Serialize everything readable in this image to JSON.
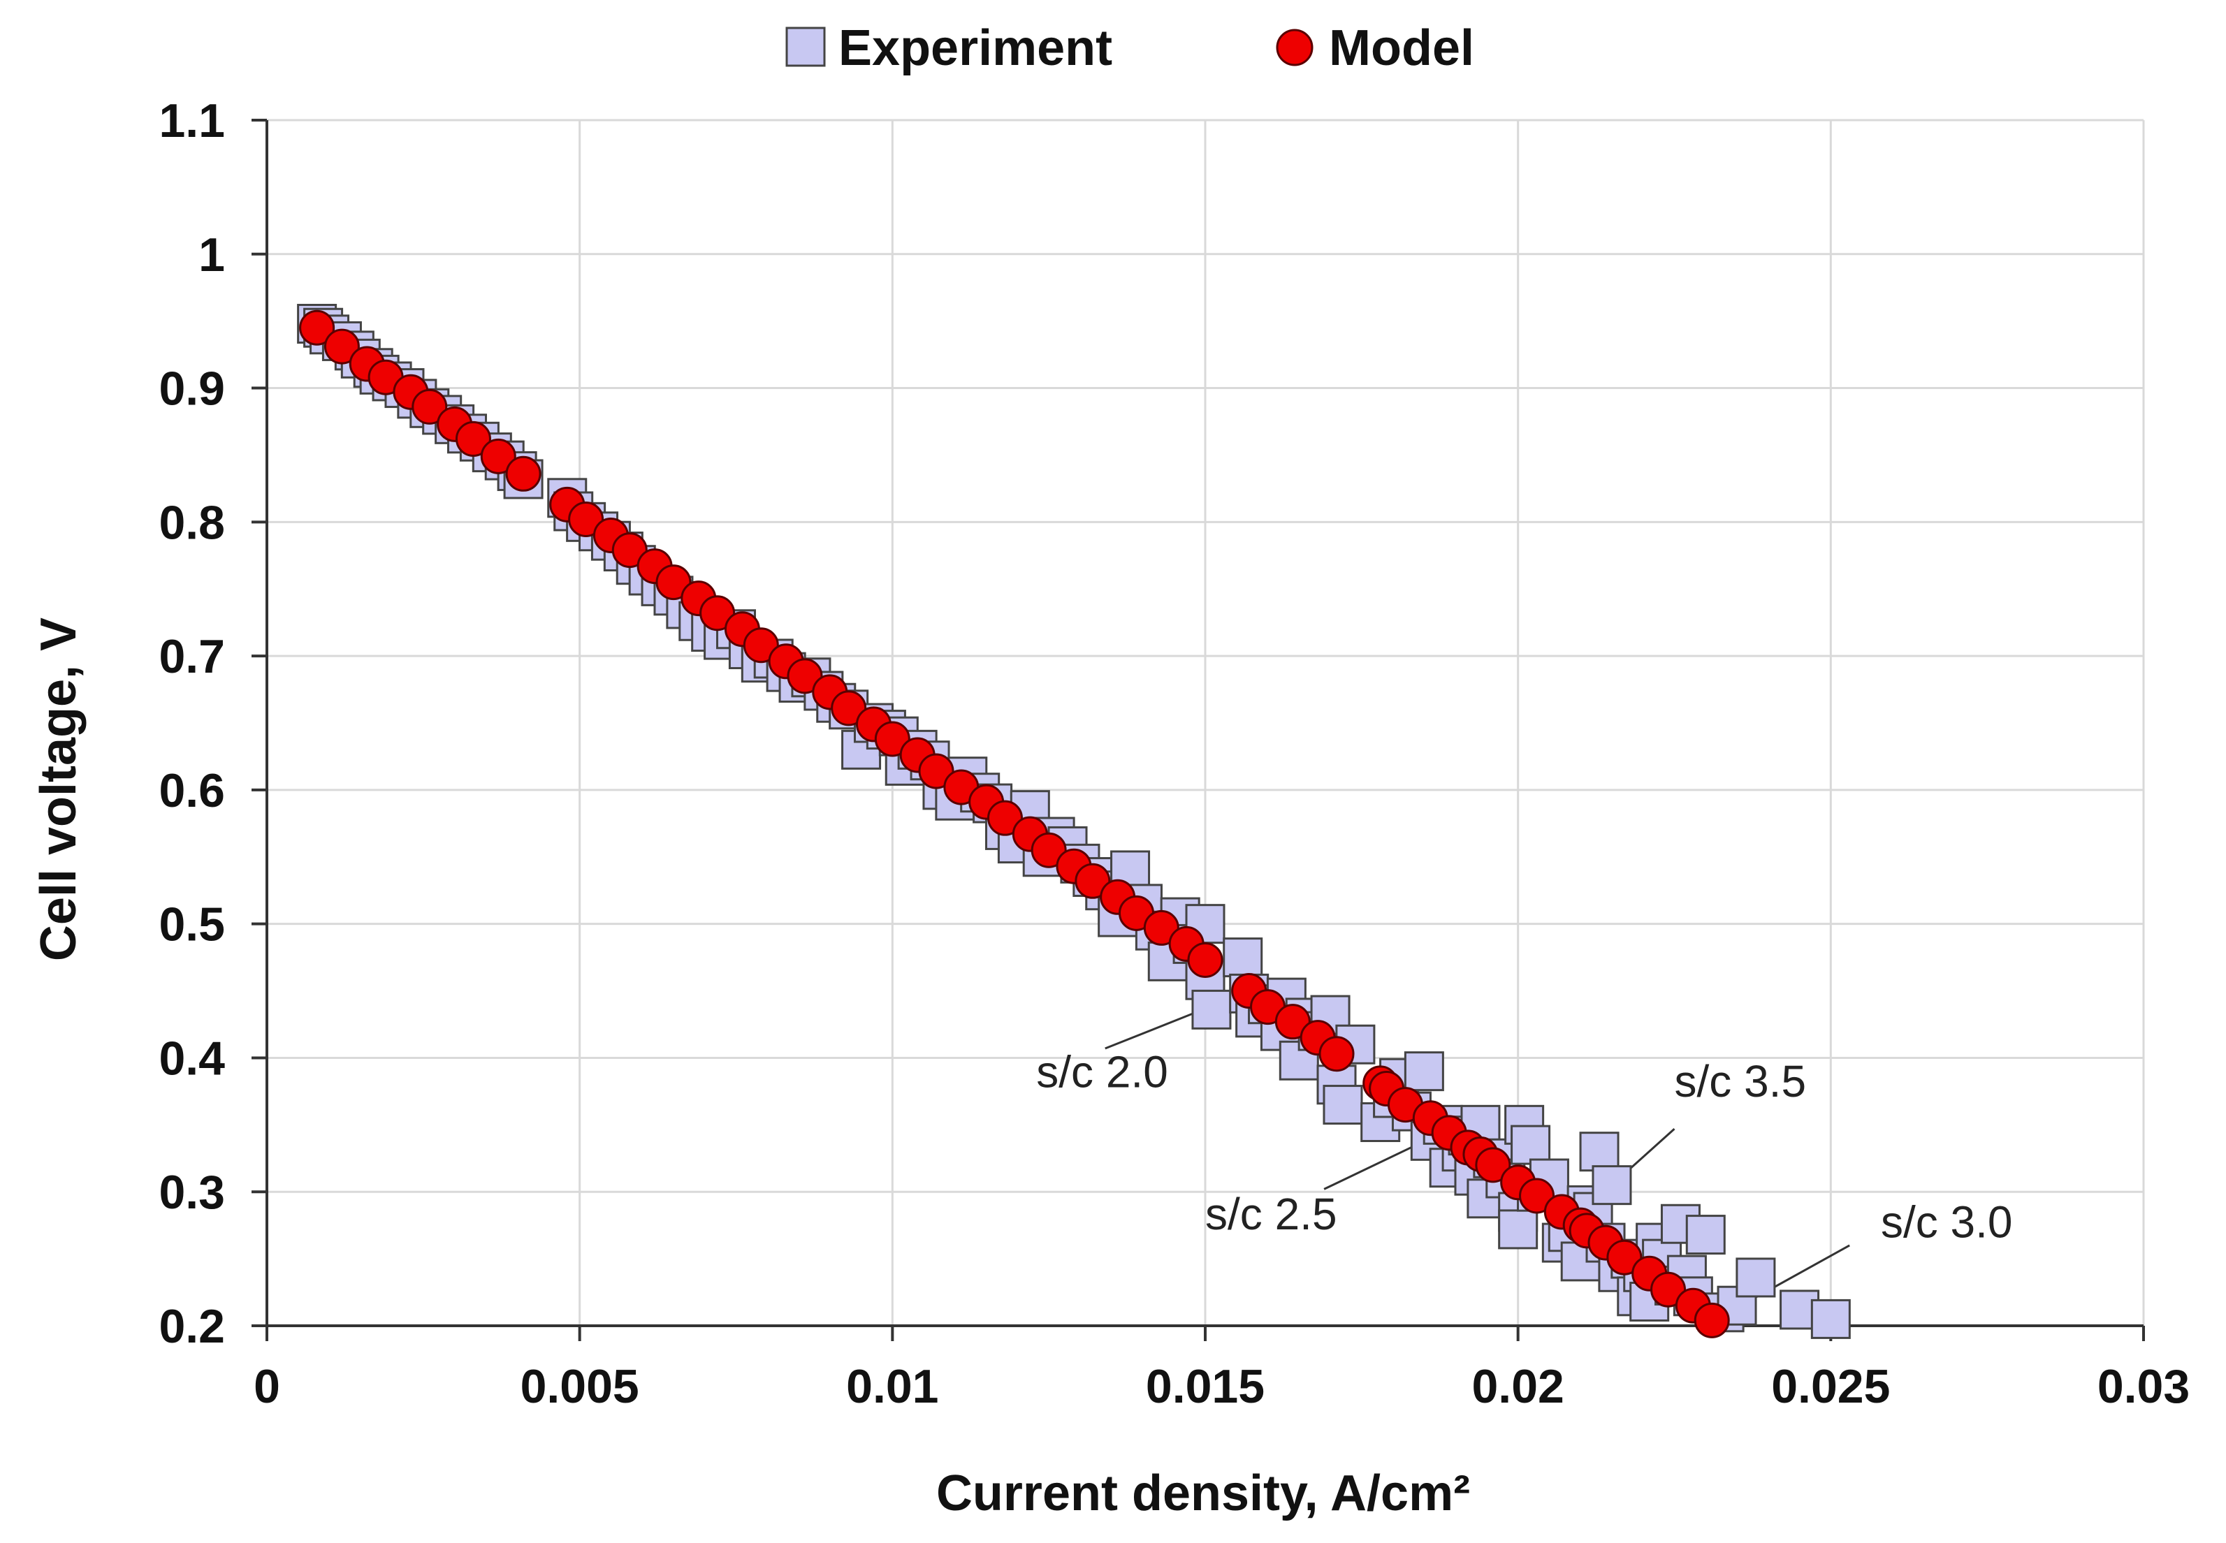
{
  "chart_data": {
    "type": "scatter",
    "title": "",
    "xlabel": "Current density, A/cm²",
    "ylabel": "Cell voltage, V",
    "xlim": [
      0,
      0.03
    ],
    "ylim": [
      0.2,
      1.1
    ],
    "xticks": [
      0,
      0.005,
      0.01,
      0.015,
      0.02,
      0.025,
      0.03
    ],
    "xtick_labels": [
      "0",
      "0.005",
      "0.01",
      "0.015",
      "0.02",
      "0.025",
      "0.03"
    ],
    "yticks": [
      0.2,
      0.3,
      0.4,
      0.5,
      0.6,
      0.7,
      0.8,
      0.9,
      1.0,
      1.1
    ],
    "ytick_labels": [
      "0.2",
      "0.3",
      "0.4",
      "0.5",
      "0.6",
      "0.7",
      "0.8",
      "0.9",
      "1",
      "1.1"
    ],
    "grid": true,
    "legend_position": "top-center",
    "series": [
      {
        "name": "Experiment",
        "marker": "square",
        "color": "#c8c8f2",
        "edge_color": "#444444",
        "points": [
          [
            0.0008,
            0.948
          ],
          [
            0.0009,
            0.945
          ],
          [
            0.001,
            0.94
          ],
          [
            0.0012,
            0.935
          ],
          [
            0.0014,
            0.928
          ],
          [
            0.0015,
            0.922
          ],
          [
            0.0017,
            0.915
          ],
          [
            0.0018,
            0.91
          ],
          [
            0.002,
            0.905
          ],
          [
            0.0022,
            0.9
          ],
          [
            0.0024,
            0.892
          ],
          [
            0.0026,
            0.885
          ],
          [
            0.0028,
            0.88
          ],
          [
            0.003,
            0.873
          ],
          [
            0.0032,
            0.866
          ],
          [
            0.0034,
            0.86
          ],
          [
            0.0036,
            0.852
          ],
          [
            0.0038,
            0.846
          ],
          [
            0.004,
            0.838
          ],
          [
            0.0041,
            0.832
          ],
          [
            0.0048,
            0.818
          ],
          [
            0.0049,
            0.808
          ],
          [
            0.0051,
            0.8
          ],
          [
            0.0053,
            0.793
          ],
          [
            0.0055,
            0.786
          ],
          [
            0.0057,
            0.778
          ],
          [
            0.0059,
            0.768
          ],
          [
            0.0061,
            0.76
          ],
          [
            0.0063,
            0.752
          ],
          [
            0.0065,
            0.745
          ],
          [
            0.0067,
            0.735
          ],
          [
            0.0069,
            0.726
          ],
          [
            0.0071,
            0.718
          ],
          [
            0.0073,
            0.712
          ],
          [
            0.0075,
            0.72
          ],
          [
            0.0077,
            0.705
          ],
          [
            0.0079,
            0.695
          ],
          [
            0.0081,
            0.698
          ],
          [
            0.0083,
            0.688
          ],
          [
            0.0085,
            0.68
          ],
          [
            0.0087,
            0.684
          ],
          [
            0.0089,
            0.674
          ],
          [
            0.0091,
            0.665
          ],
          [
            0.0093,
            0.66
          ],
          [
            0.0095,
            0.63
          ],
          [
            0.0097,
            0.65
          ],
          [
            0.0099,
            0.645
          ],
          [
            0.0101,
            0.64
          ],
          [
            0.0102,
            0.618
          ],
          [
            0.0104,
            0.63
          ],
          [
            0.0106,
            0.622
          ],
          [
            0.0108,
            0.6
          ],
          [
            0.011,
            0.592
          ],
          [
            0.0112,
            0.61
          ],
          [
            0.0114,
            0.598
          ],
          [
            0.0116,
            0.59
          ],
          [
            0.0118,
            0.57
          ],
          [
            0.012,
            0.56
          ],
          [
            0.0122,
            0.585
          ],
          [
            0.0124,
            0.55
          ],
          [
            0.0126,
            0.565
          ],
          [
            0.0128,
            0.558
          ],
          [
            0.013,
            0.545
          ],
          [
            0.0132,
            0.535
          ],
          [
            0.0134,
            0.525
          ],
          [
            0.0136,
            0.505
          ],
          [
            0.0138,
            0.54
          ],
          [
            0.014,
            0.515
          ],
          [
            0.0142,
            0.495
          ],
          [
            0.0144,
            0.472
          ],
          [
            0.0146,
            0.505
          ],
          [
            0.0148,
            0.485
          ],
          [
            0.015,
            0.5
          ],
          [
            0.015,
            0.458
          ],
          [
            0.0151,
            0.436
          ],
          [
            0.0156,
            0.475
          ],
          [
            0.0157,
            0.448
          ],
          [
            0.0158,
            0.43
          ],
          [
            0.016,
            0.44
          ],
          [
            0.0162,
            0.42
          ],
          [
            0.0163,
            0.445
          ],
          [
            0.0165,
            0.398
          ],
          [
            0.0166,
            0.43
          ],
          [
            0.0168,
            0.42
          ],
          [
            0.017,
            0.432
          ],
          [
            0.0171,
            0.38
          ],
          [
            0.0172,
            0.365
          ],
          [
            0.0174,
            0.41
          ],
          [
            0.0178,
            0.352
          ],
          [
            0.018,
            0.37
          ],
          [
            0.0181,
            0.385
          ],
          [
            0.0183,
            0.36
          ],
          [
            0.0185,
            0.39
          ],
          [
            0.0186,
            0.338
          ],
          [
            0.0188,
            0.35
          ],
          [
            0.0189,
            0.318
          ],
          [
            0.0191,
            0.33
          ],
          [
            0.0192,
            0.342
          ],
          [
            0.0193,
            0.312
          ],
          [
            0.0194,
            0.35
          ],
          [
            0.0195,
            0.295
          ],
          [
            0.0196,
            0.325
          ],
          [
            0.0198,
            0.31
          ],
          [
            0.02,
            0.285
          ],
          [
            0.02,
            0.272
          ],
          [
            0.0201,
            0.35
          ],
          [
            0.0202,
            0.335
          ],
          [
            0.0203,
            0.3
          ],
          [
            0.0205,
            0.31
          ],
          [
            0.0207,
            0.262
          ],
          [
            0.0208,
            0.27
          ],
          [
            0.021,
            0.248
          ],
          [
            0.0211,
            0.29
          ],
          [
            0.0212,
            0.285
          ],
          [
            0.0213,
            0.33
          ],
          [
            0.0214,
            0.262
          ],
          [
            0.0215,
            0.305
          ],
          [
            0.0216,
            0.24
          ],
          [
            0.0218,
            0.25
          ],
          [
            0.0219,
            0.222
          ],
          [
            0.022,
            0.24
          ],
          [
            0.0221,
            0.218
          ],
          [
            0.0222,
            0.262
          ],
          [
            0.0223,
            0.25
          ],
          [
            0.0225,
            0.23
          ],
          [
            0.0226,
            0.276
          ],
          [
            0.0227,
            0.238
          ],
          [
            0.0228,
            0.222
          ],
          [
            0.023,
            0.268
          ],
          [
            0.0233,
            0.21
          ],
          [
            0.0235,
            0.215
          ],
          [
            0.0238,
            0.236
          ],
          [
            0.0245,
            0.212
          ],
          [
            0.025,
            0.205
          ]
        ]
      },
      {
        "name": "Model",
        "marker": "circle",
        "color": "#ee0000",
        "edge_color": "#5a0000",
        "points": [
          [
            0.0008,
            0.945
          ],
          [
            0.0012,
            0.931
          ],
          [
            0.0016,
            0.918
          ],
          [
            0.0019,
            0.908
          ],
          [
            0.0023,
            0.897
          ],
          [
            0.0026,
            0.886
          ],
          [
            0.003,
            0.873
          ],
          [
            0.0033,
            0.862
          ],
          [
            0.0037,
            0.849
          ],
          [
            0.0041,
            0.836
          ],
          [
            0.0048,
            0.813
          ],
          [
            0.0051,
            0.802
          ],
          [
            0.0055,
            0.79
          ],
          [
            0.0058,
            0.779
          ],
          [
            0.0062,
            0.767
          ],
          [
            0.0065,
            0.755
          ],
          [
            0.0069,
            0.743
          ],
          [
            0.0072,
            0.732
          ],
          [
            0.0076,
            0.72
          ],
          [
            0.0079,
            0.708
          ],
          [
            0.0083,
            0.696
          ],
          [
            0.0086,
            0.685
          ],
          [
            0.009,
            0.673
          ],
          [
            0.0093,
            0.661
          ],
          [
            0.0097,
            0.649
          ],
          [
            0.01,
            0.638
          ],
          [
            0.0104,
            0.626
          ],
          [
            0.0107,
            0.614
          ],
          [
            0.0111,
            0.602
          ],
          [
            0.0115,
            0.591
          ],
          [
            0.0118,
            0.579
          ],
          [
            0.0122,
            0.567
          ],
          [
            0.0125,
            0.555
          ],
          [
            0.0129,
            0.543
          ],
          [
            0.0132,
            0.532
          ],
          [
            0.0136,
            0.52
          ],
          [
            0.0139,
            0.508
          ],
          [
            0.0143,
            0.497
          ],
          [
            0.0147,
            0.485
          ],
          [
            0.015,
            0.473
          ],
          [
            0.0157,
            0.45
          ],
          [
            0.016,
            0.438
          ],
          [
            0.0164,
            0.427
          ],
          [
            0.0168,
            0.415
          ],
          [
            0.0171,
            0.403
          ],
          [
            0.0178,
            0.381
          ],
          [
            0.0179,
            0.377
          ],
          [
            0.0182,
            0.365
          ],
          [
            0.0186,
            0.355
          ],
          [
            0.0189,
            0.344
          ],
          [
            0.0192,
            0.333
          ],
          [
            0.0194,
            0.328
          ],
          [
            0.0196,
            0.32
          ],
          [
            0.02,
            0.307
          ],
          [
            0.0203,
            0.297
          ],
          [
            0.0207,
            0.285
          ],
          [
            0.021,
            0.275
          ],
          [
            0.0211,
            0.271
          ],
          [
            0.0214,
            0.262
          ],
          [
            0.0217,
            0.251
          ],
          [
            0.0221,
            0.239
          ],
          [
            0.0224,
            0.227
          ],
          [
            0.0228,
            0.215
          ],
          [
            0.0231,
            0.204
          ]
        ]
      }
    ],
    "annotations": [
      {
        "text": "s/c 2.0",
        "x": 0.0123,
        "y": 0.378,
        "line_from": [
          0.0134,
          0.407
        ],
        "line_to": [
          0.0148,
          0.433
        ]
      },
      {
        "text": "s/c 2.5",
        "x": 0.015,
        "y": 0.272,
        "line_from": [
          0.0169,
          0.302
        ],
        "line_to": [
          0.0186,
          0.34
        ]
      },
      {
        "text": "s/c 3.5",
        "x": 0.0225,
        "y": 0.371,
        "line_from": [
          0.0225,
          0.347
        ],
        "line_to": [
          0.0215,
          0.305
        ]
      },
      {
        "text": "s/c 3.0",
        "x": 0.0258,
        "y": 0.266,
        "line_from": [
          0.0253,
          0.26
        ],
        "line_to": [
          0.0236,
          0.216
        ]
      }
    ]
  }
}
